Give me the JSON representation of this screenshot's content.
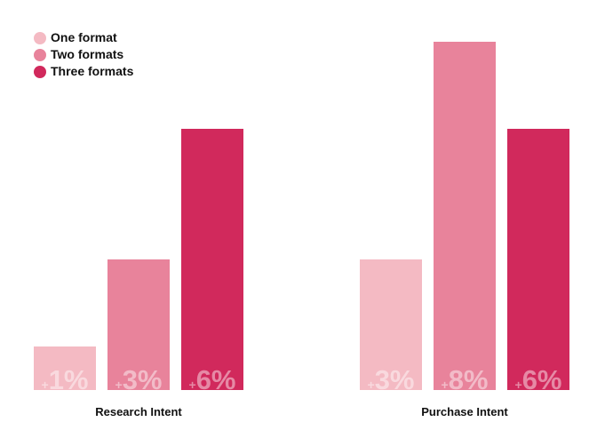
{
  "chart_data": {
    "type": "bar",
    "categories": [
      "Research Intent",
      "Purchase Intent"
    ],
    "series": [
      {
        "name": "One format",
        "values": [
          1,
          3
        ],
        "labels": [
          "+1%",
          "+3%"
        ],
        "color": "#f4bac3"
      },
      {
        "name": "Two formats",
        "values": [
          3,
          8
        ],
        "labels": [
          "+3%",
          "+8%"
        ],
        "color": "#e8839b"
      },
      {
        "name": "Three formats",
        "values": [
          6,
          6
        ],
        "labels": [
          "+6%",
          "+6%"
        ],
        "color": "#d1295c"
      }
    ],
    "ylim": [
      0,
      8
    ],
    "grid": false,
    "legend_position": "top-left",
    "title": "",
    "xlabel": "",
    "ylabel": ""
  }
}
